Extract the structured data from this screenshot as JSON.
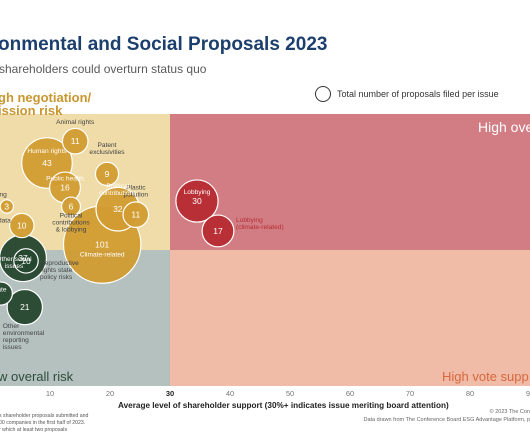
{
  "title": "onmental and Social Proposals 2023",
  "subtitle": "shareholders could overturn status quo",
  "legend": {
    "label": "Total number of proposals filed per issue"
  },
  "chart_data": {
    "type": "bubble-scatter",
    "xlabel": "Average level of shareholder support (30%+ indicates issue meriting board attention)",
    "xlim": [
      0,
      90
    ],
    "ylim": [
      0,
      100
    ],
    "x_ticks": [
      "10",
      "20",
      "30",
      "40",
      "50",
      "60",
      "70",
      "80",
      "90"
    ],
    "quadrants": [
      {
        "line1": "gh negotiation/",
        "line2": "ission risk",
        "color": "#efdca8",
        "text_color": "#c9962f"
      },
      {
        "line1": "High ove",
        "line2": "",
        "color": "#d27d84",
        "text_color": "#ffffff"
      },
      {
        "line1": "w overall risk",
        "line2": "",
        "color": "#b4c1bf",
        "text_color": "#2e4d3d"
      },
      {
        "line1": "High vote supp",
        "line2": "",
        "color": "#f0bba7",
        "text_color": "#d8683e"
      }
    ],
    "divider": {
      "x": 30,
      "y": 50,
      "label": "30"
    },
    "footnote_left": [
      "s shareholder proposals submitted and",
      "00 companies in the first half of 2023.",
      "r which at least two proposals"
    ],
    "footnote_right": [
      "© 2023 The Con",
      "Data drawn from The Conference Board ESG Advantage Platform, p"
    ],
    "colors": {
      "gold": "#d19c32",
      "red": "#b62c33",
      "green": "#27472f"
    },
    "bubbles": [
      {
        "name": "Animal rights",
        "count": "11",
        "x": 14.2,
        "y": 90,
        "color": "gold"
      },
      {
        "name": "Human rights",
        "count": "43",
        "x": 9.5,
        "y": 82,
        "color": "gold"
      },
      {
        "name": "Public health",
        "count": "16",
        "x": 12.5,
        "y": 73,
        "color": "gold"
      },
      {
        "name": "Patent exclusivities",
        "count": "9",
        "x": 19.5,
        "y": 78,
        "color": "gold"
      },
      {
        "name": "Plastic pollution",
        "count": "11",
        "x": 24.3,
        "y": 63,
        "color": "gold"
      },
      {
        "name": "Political contributions",
        "count": "32",
        "x": 21.3,
        "y": 65,
        "color": "gold"
      },
      {
        "name": "aritable ing",
        "count": "3",
        "x": 2.8,
        "y": 66,
        "color": "gold"
      },
      {
        "name": "uctive & data",
        "count": "10",
        "x": 5.3,
        "y": 59,
        "color": "gold"
      },
      {
        "name": "Political contributions & lobbying",
        "count": "6",
        "x": 13.5,
        "y": 66,
        "color": "gold"
      },
      {
        "name": "Climate-related",
        "count": "101",
        "x": 18.7,
        "y": 52,
        "color": "gold"
      },
      {
        "name": "Lobbying",
        "count": "30",
        "x": 34.5,
        "y": 68,
        "color": "red"
      },
      {
        "name": "Lobbying (climate-related)",
        "count": "17",
        "x": 38,
        "y": 57,
        "color": "red"
      },
      {
        "name": "Other social issues",
        "count": "37",
        "x": 5.5,
        "y": 47,
        "color": "green"
      },
      {
        "name": "Reproductive rights state policy risks",
        "count": "10",
        "x": 6.0,
        "y": 46,
        "color": "green"
      },
      {
        "name": "rate",
        "count": "",
        "x": 1.8,
        "y": 34,
        "color": "green"
      },
      {
        "name": "Other environmental reporting issues",
        "count": "21",
        "x": 5.8,
        "y": 29,
        "color": "green"
      }
    ]
  }
}
